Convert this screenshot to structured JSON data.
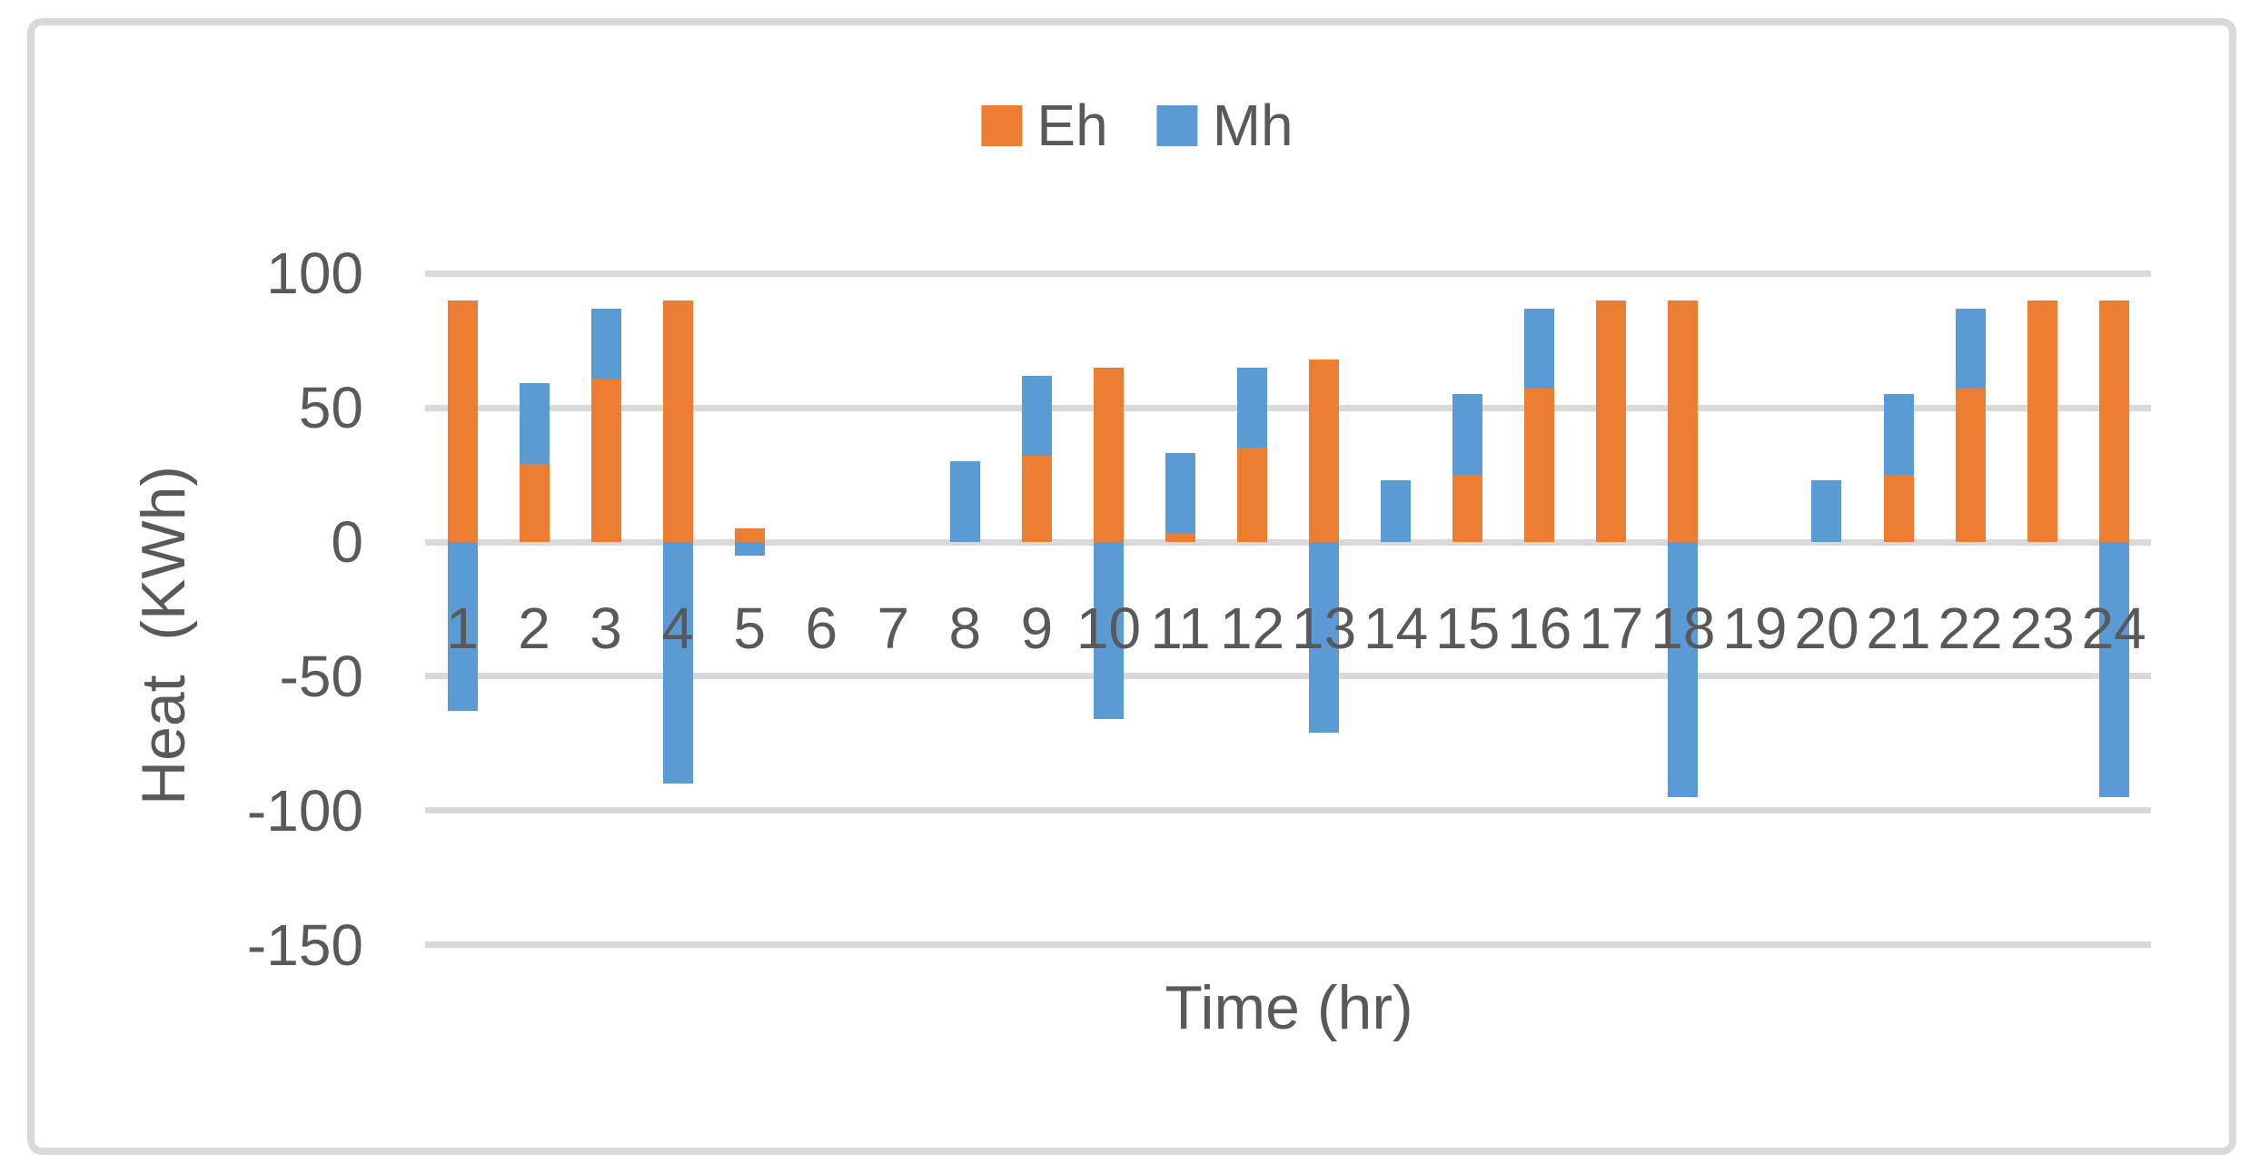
{
  "chart_data": {
    "type": "bar",
    "stacked": true,
    "title": "",
    "xlabel": "Time (hr)",
    "ylabel": "Heat  (KWh)",
    "ylim": [
      -150,
      100
    ],
    "grid": true,
    "legend_position": "top-center",
    "text_color": "#595959",
    "gridline_color": "#D9D9D9",
    "border_color": "#D9D9D9",
    "background_color": "#FFFFFF",
    "ytick_values": [
      100,
      50,
      0,
      -50,
      -100,
      -150
    ],
    "ytick_labels": [
      "100",
      "50",
      "0",
      "-50",
      "-100",
      "-150"
    ],
    "categories": [
      "1",
      "2",
      "3",
      "4",
      "5",
      "6",
      "7",
      "8",
      "9",
      "10",
      "11",
      "12",
      "13",
      "14",
      "15",
      "16",
      "17",
      "18",
      "19",
      "20",
      "21",
      "22",
      "23",
      "24"
    ],
    "series": [
      {
        "name": "Eh",
        "color": "#ED7D31",
        "values": [
          90,
          29,
          61,
          90,
          5,
          0,
          0,
          0,
          32,
          65,
          3,
          35,
          68,
          0,
          25,
          57,
          90,
          90,
          0,
          0,
          25,
          57,
          90,
          90
        ]
      },
      {
        "name": "Mh",
        "color": "#5B9BD5",
        "values": [
          -63,
          30,
          26,
          -90,
          -5,
          0,
          0,
          30,
          30,
          -66,
          30,
          30,
          -71,
          23,
          30,
          30,
          0,
          -95,
          0,
          23,
          30,
          30,
          0,
          -95
        ]
      }
    ]
  }
}
